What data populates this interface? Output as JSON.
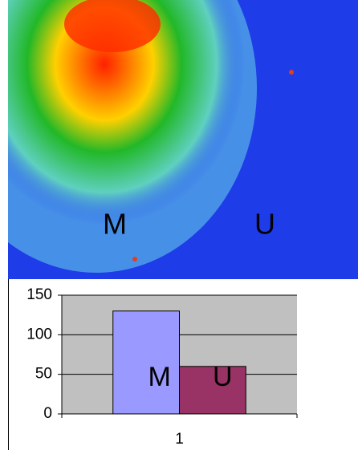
{
  "image": {
    "labels": [
      "M",
      "U"
    ]
  },
  "chart_data": {
    "type": "bar",
    "categories": [
      "1"
    ],
    "series": [
      {
        "name": "M",
        "color": "#9999ff",
        "values": [
          130
        ]
      },
      {
        "name": "U",
        "color": "#993366",
        "values": [
          60
        ]
      }
    ],
    "ylim": [
      0,
      150
    ],
    "yticks": [
      0,
      50,
      100,
      150
    ],
    "grid": true,
    "plot_background": "#c0c0c0"
  }
}
